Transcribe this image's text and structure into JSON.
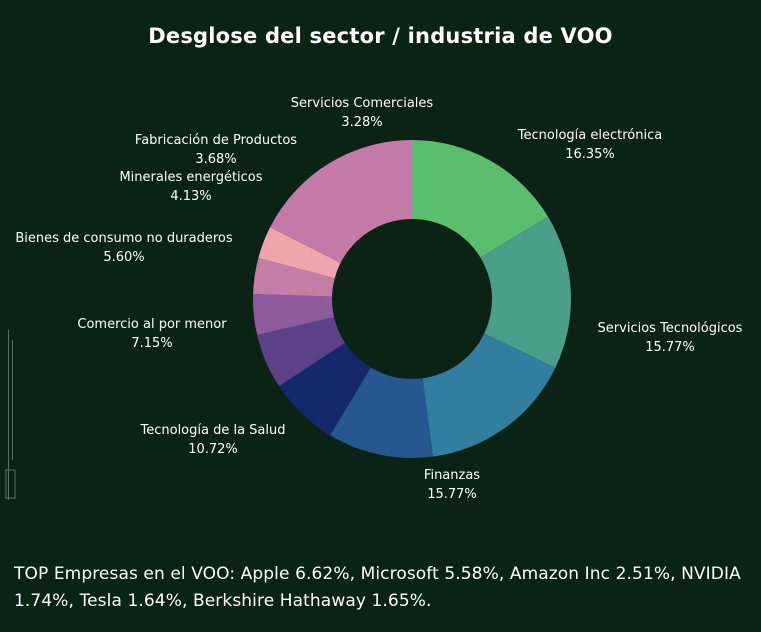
{
  "chart_data": {
    "type": "pie",
    "donut": true,
    "title": "Desglose del sector / industria de VOO",
    "slices": [
      {
        "label": "Tecnología electrónica",
        "value": 16.35,
        "value_label": "16.35%",
        "color": "#5bbd6e"
      },
      {
        "label": "Servicios Tecnológicos",
        "value": 15.77,
        "value_label": "15.77%",
        "color": "#4a9e8a"
      },
      {
        "label": "Finanzas",
        "value": 15.77,
        "value_label": "15.77%",
        "color": "#327ea0"
      },
      {
        "label": "Tecnología de la Salud",
        "value": 10.72,
        "value_label": "10.72%",
        "color": "#285690"
      },
      {
        "label": "Comercio al por menor",
        "value": 7.15,
        "value_label": "7.15%",
        "color": "#14286a"
      },
      {
        "label": "Bienes de consumo no duraderos",
        "value": 5.6,
        "value_label": "5.60%",
        "color": "#5a4188"
      },
      {
        "label": "Minerales energéticos",
        "value": 4.13,
        "value_label": "4.13%",
        "color": "#8e5a9e"
      },
      {
        "label": "Fabricación de Productos",
        "value": 3.68,
        "value_label": "3.68%",
        "color": "#c27ea4"
      },
      {
        "label": "Servicios Comerciales",
        "value": 3.28,
        "value_label": "3.28%",
        "color": "#f2a4ad"
      }
    ],
    "remainder_color": "#c47aa6"
  },
  "footer": {
    "text": "TOP Empresas en el VOO: Apple 6.62%, Microsoft 5.58%, Amazon Inc 2.51%, NVIDIA 1.74%, Tesla 1.64%, Berkshire Hathaway 1.65%."
  }
}
